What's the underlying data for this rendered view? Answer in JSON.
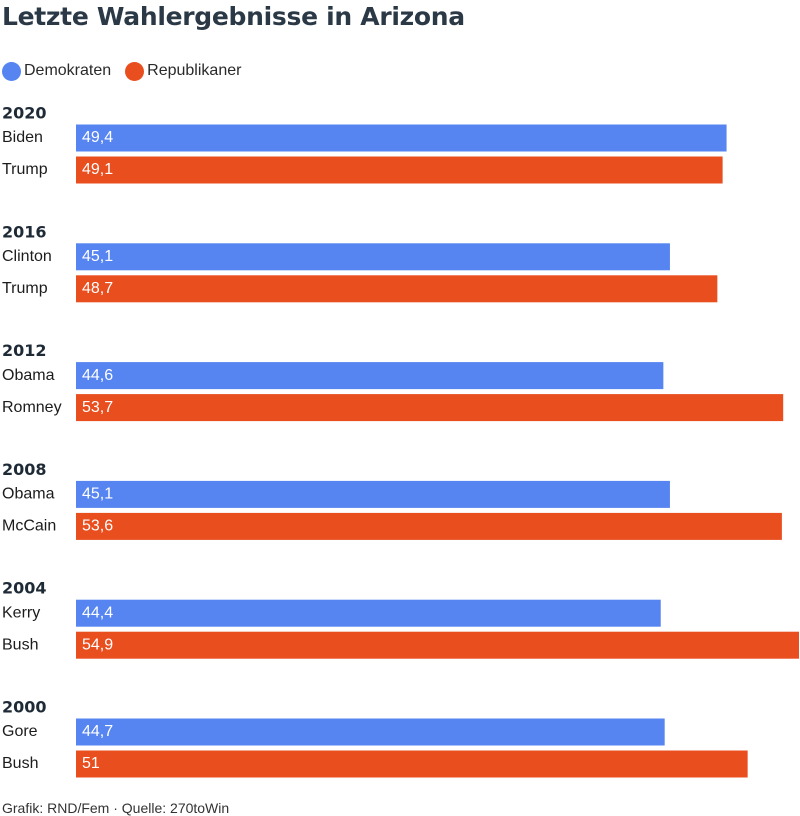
{
  "title": "Letzte Wahlergebnisse in Arizona",
  "legend": [
    {
      "label": "Demokraten",
      "color": "#5684f1"
    },
    {
      "label": "Republikaner",
      "color": "#e84e1e"
    }
  ],
  "footer": "Grafik: RND/Fem · Quelle: 270toWin",
  "chart_data": {
    "type": "bar",
    "orientation": "horizontal",
    "title": "Letzte Wahlergebnisse in Arizona",
    "legend_position": "top-left",
    "grid": false,
    "series_colors": {
      "Demokraten": "#5684f1",
      "Republikaner": "#e84e1e"
    },
    "xlim": [
      0,
      54.9
    ],
    "groups": [
      {
        "year": "2020",
        "bars": [
          {
            "candidate": "Biden",
            "party": "Demokraten",
            "value": 49.4,
            "label": "49,4"
          },
          {
            "candidate": "Trump",
            "party": "Republikaner",
            "value": 49.1,
            "label": "49,1"
          }
        ]
      },
      {
        "year": "2016",
        "bars": [
          {
            "candidate": "Clinton",
            "party": "Demokraten",
            "value": 45.1,
            "label": "45,1"
          },
          {
            "candidate": "Trump",
            "party": "Republikaner",
            "value": 48.7,
            "label": "48,7"
          }
        ]
      },
      {
        "year": "2012",
        "bars": [
          {
            "candidate": "Obama",
            "party": "Demokraten",
            "value": 44.6,
            "label": "44,6"
          },
          {
            "candidate": "Romney",
            "party": "Republikaner",
            "value": 53.7,
            "label": "53,7"
          }
        ]
      },
      {
        "year": "2008",
        "bars": [
          {
            "candidate": "Obama",
            "party": "Demokraten",
            "value": 45.1,
            "label": "45,1"
          },
          {
            "candidate": "McCain",
            "party": "Republikaner",
            "value": 53.6,
            "label": "53,6"
          }
        ]
      },
      {
        "year": "2004",
        "bars": [
          {
            "candidate": "Kerry",
            "party": "Demokraten",
            "value": 44.4,
            "label": "44,4"
          },
          {
            "candidate": "Bush",
            "party": "Republikaner",
            "value": 54.9,
            "label": "54,9"
          }
        ]
      },
      {
        "year": "2000",
        "bars": [
          {
            "candidate": "Gore",
            "party": "Demokraten",
            "value": 44.7,
            "label": "44,7"
          },
          {
            "candidate": "Bush",
            "party": "Republikaner",
            "value": 51,
            "label": "51"
          }
        ]
      }
    ]
  }
}
